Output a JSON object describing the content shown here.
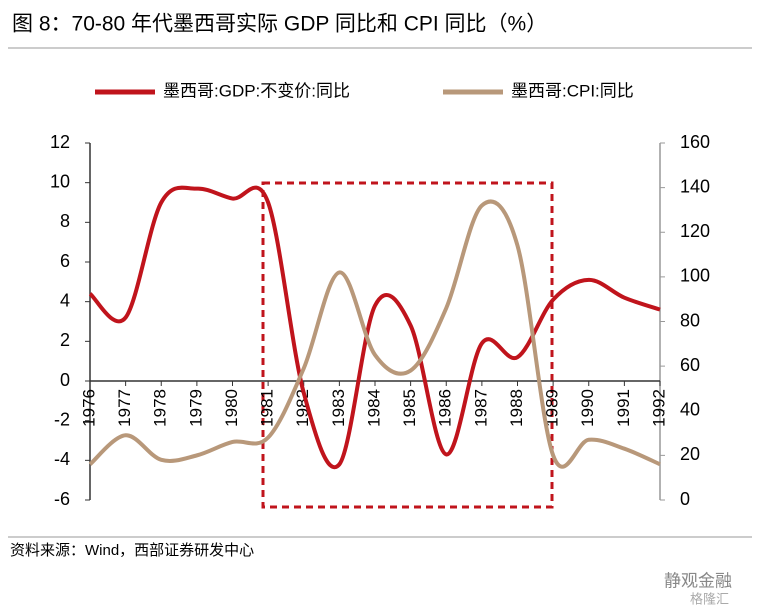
{
  "chart_data": {
    "type": "line",
    "title": "图 8：70-80 年代墨西哥实际 GDP 同比和 CPI 同比（%）",
    "source": "资料来源：Wind，西部证券研发中心",
    "watermark": [
      "静观金融",
      "格隆汇"
    ],
    "categories": [
      "1976",
      "1977",
      "1978",
      "1979",
      "1980",
      "1981",
      "1982",
      "1983",
      "1984",
      "1985",
      "1986",
      "1987",
      "1988",
      "1989",
      "1990",
      "1991",
      "1992"
    ],
    "series": [
      {
        "name": "墨西哥:GDP:不变价:同比",
        "color": "#c0141c",
        "axis": "y",
        "values": [
          4.4,
          3.2,
          9.0,
          9.7,
          9.2,
          9.0,
          -0.6,
          -4.2,
          3.8,
          2.8,
          -3.7,
          1.9,
          1.2,
          4.1,
          5.1,
          4.2,
          3.6
        ]
      },
      {
        "name": "墨西哥:CPI:同比",
        "color": "#b8987a",
        "axis": "y2",
        "values": [
          16,
          29,
          18,
          20,
          26,
          28,
          59,
          102,
          65,
          58,
          86,
          132,
          114,
          20,
          27,
          23,
          16
        ]
      }
    ],
    "ylim": [
      -6,
      12
    ],
    "yticks": [
      -6,
      -4,
      -2,
      0,
      2,
      4,
      6,
      8,
      10,
      12
    ],
    "y2lim": [
      0,
      160
    ],
    "y2ticks": [
      0,
      20,
      40,
      60,
      80,
      100,
      120,
      140,
      160
    ],
    "grid": false,
    "legend": "top"
  }
}
